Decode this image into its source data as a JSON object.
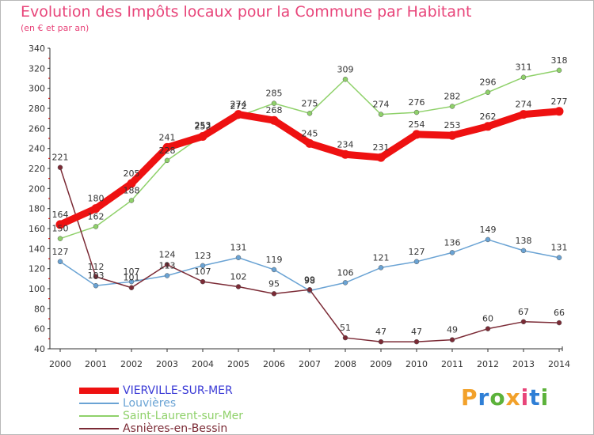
{
  "header": {
    "title": "Evolution des Impôts locaux pour la Commune par Habitant",
    "subtitle": "(en € et par an)"
  },
  "logo": {
    "text": "Proxiti",
    "colors": [
      "#f2a12a",
      "#2f7fd6",
      "#5cb23a",
      "#f2a12a",
      "#e8457a",
      "#2f7fd6",
      "#5cb23a"
    ]
  },
  "chart_data": {
    "type": "line",
    "title": "Evolution des Impôts locaux pour la Commune par Habitant",
    "subtitle": "(en € et par an)",
    "x": [
      "2000",
      "2001",
      "2002",
      "2003",
      "2004",
      "2005",
      "2006",
      "2007",
      "2008",
      "2009",
      "2010",
      "2011",
      "2012",
      "2013",
      "2014"
    ],
    "ylim": [
      40,
      340
    ],
    "yticks": [
      40,
      60,
      80,
      100,
      120,
      140,
      160,
      180,
      200,
      220,
      240,
      260,
      280,
      300,
      320,
      340
    ],
    "grid": false,
    "legend_position": "bottom-left",
    "series": [
      {
        "name": "Saint-Laurent-sur-Mer",
        "color": "#8fd16a",
        "values": [
          150,
          162,
          188,
          228,
          253,
          272,
          285,
          275,
          309,
          274,
          276,
          282,
          296,
          311,
          318
        ],
        "labels": [
          "150",
          "162",
          "188",
          "228",
          "253",
          "272",
          "285",
          "275",
          "309",
          "274",
          "276",
          "282",
          "296",
          "311",
          "318"
        ]
      },
      {
        "name": "Louvières",
        "color": "#6aa3d4",
        "values": [
          127,
          103,
          107,
          113,
          123,
          131,
          119,
          98,
          106,
          121,
          127,
          136,
          149,
          138,
          131
        ],
        "labels": [
          "127",
          "103",
          "107",
          "113",
          "123",
          "131",
          "119",
          "98",
          "106",
          "121",
          "127",
          "136",
          "149",
          "138",
          "131"
        ]
      },
      {
        "name": "Asnières-en-Bessin",
        "color": "#7b2a35",
        "values": [
          221,
          112,
          101,
          124,
          107,
          102,
          95,
          99,
          51,
          47,
          47,
          49,
          60,
          67,
          66
        ],
        "labels": [
          "221",
          "112",
          "101",
          "124",
          "107",
          "102",
          "95",
          "99",
          "51",
          "47",
          "47",
          "49",
          "60",
          "67",
          "66"
        ]
      },
      {
        "name": "VIERVILLE-SUR-MER",
        "color": "#ee1111",
        "values": [
          164,
          180,
          205,
          241,
          252,
          274,
          268,
          245,
          234,
          231,
          254,
          253,
          262,
          274,
          277
        ],
        "labels": [
          "164",
          "180",
          "205",
          "241",
          "252",
          "274",
          "268",
          "245",
          "234",
          "231",
          "254",
          "253",
          "262",
          "274",
          "277"
        ]
      }
    ],
    "legend_order": [
      "VIERVILLE-SUR-MER",
      "Louvières",
      "Saint-Laurent-sur-Mer",
      "Asnières-en-Bessin"
    ]
  }
}
